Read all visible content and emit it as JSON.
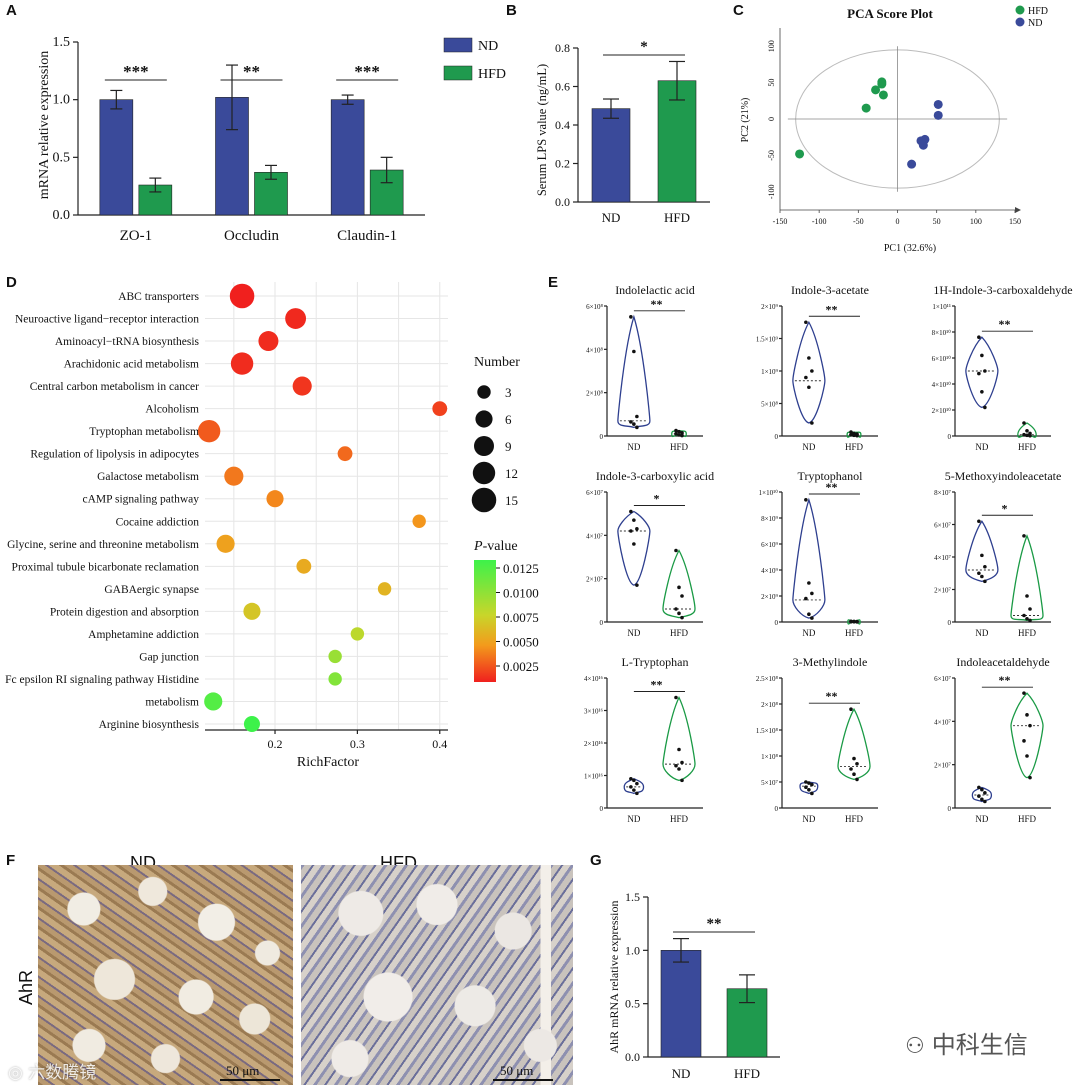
{
  "colors": {
    "nd": "#3a4a9a",
    "hfd": "#1f9a4e",
    "nd_violin": "#2e3f8f",
    "hfd_violin": "#1a9a45"
  },
  "panels": {
    "A": {
      "label": "A",
      "chart_data": {
        "type": "bar",
        "categories": [
          "ZO-1",
          "Occludin",
          "Claudin-1"
        ],
        "series": [
          {
            "name": "ND",
            "values": [
              1.0,
              1.02,
              1.0
            ],
            "errors": [
              0.08,
              0.28,
              0.04
            ]
          },
          {
            "name": "HFD",
            "values": [
              0.26,
              0.37,
              0.39
            ],
            "errors": [
              0.06,
              0.06,
              0.11
            ]
          }
        ],
        "significance": [
          "***",
          "**",
          "***"
        ],
        "ylabel": "mRNA relative expression",
        "ylim": [
          0,
          1.5
        ],
        "yticks": [
          "0.0",
          "0.5",
          "1.0",
          "1.5"
        ],
        "legend": "right"
      }
    },
    "B": {
      "label": "B",
      "chart_data": {
        "type": "bar",
        "categories": [
          "ND",
          "HFD"
        ],
        "values": [
          0.485,
          0.63
        ],
        "errors": [
          0.05,
          0.1
        ],
        "significance": "*",
        "ylabel": "Serum LPS value (ng/mL)",
        "ylim": [
          0,
          0.8
        ],
        "yticks": [
          "0.0",
          "0.2",
          "0.4",
          "0.6",
          "0.8"
        ]
      }
    },
    "C": {
      "label": "C",
      "chart_data": {
        "type": "scatter",
        "title": "PCA Score Plot",
        "xlabel": "PC1 (32.6%)",
        "ylabel": "PC2 (21%)",
        "xlim": [
          -150,
          150
        ],
        "ylim": [
          -125,
          125
        ],
        "xticks": [
          "-150",
          "-100",
          "-50",
          "0",
          "50",
          "100",
          "150"
        ],
        "yticks": [
          "100",
          "50",
          "0",
          "-50",
          "-100"
        ],
        "series": [
          {
            "name": "HFD",
            "points": [
              [
                -125,
                -48
              ],
              [
                -40,
                15
              ],
              [
                -28,
                40
              ],
              [
                -20,
                48
              ],
              [
                -20,
                51
              ],
              [
                -18,
                33
              ]
            ]
          },
          {
            "name": "ND",
            "points": [
              [
                52,
                20
              ],
              [
                52,
                5
              ],
              [
                35,
                -28
              ],
              [
                33,
                -36
              ],
              [
                18,
                -62
              ],
              [
                30,
                -30
              ]
            ]
          }
        ],
        "legend": "top-right"
      }
    },
    "D": {
      "label": "D",
      "chart_data": {
        "type": "bubble",
        "xlabel": "RichFactor",
        "xlim": [
          0.115,
          0.41
        ],
        "xticks": [
          "0.2",
          "0.3",
          "0.4"
        ],
        "pathways": [
          {
            "name": "ABC transporters",
            "rich": 0.16,
            "number": 15,
            "p": 0.0001
          },
          {
            "name": "Neuroactive ligand−receptor interaction",
            "rich": 0.225,
            "number": 10,
            "p": 0.0004
          },
          {
            "name": "Aminoacyl−tRNA biosynthesis",
            "rich": 0.192,
            "number": 9,
            "p": 0.0005
          },
          {
            "name": "Arachidonic acid metabolism",
            "rich": 0.16,
            "number": 12,
            "p": 0.0005
          },
          {
            "name": "Central carbon metabolism in cancer",
            "rich": 0.233,
            "number": 8,
            "p": 0.0008
          },
          {
            "name": "Alcoholism",
            "rich": 0.4,
            "number": 4,
            "p": 0.0012
          },
          {
            "name": "Tryptophan metabolism",
            "rich": 0.12,
            "number": 12,
            "p": 0.002
          },
          {
            "name": "Regulation of lipolysis in adipocytes",
            "rich": 0.285,
            "number": 4,
            "p": 0.0025
          },
          {
            "name": "Galactose metabolism",
            "rich": 0.15,
            "number": 8,
            "p": 0.003
          },
          {
            "name": "cAMP signaling pathway",
            "rich": 0.2,
            "number": 6,
            "p": 0.0035
          },
          {
            "name": "Cocaine addiction",
            "rich": 0.375,
            "number": 3,
            "p": 0.004
          },
          {
            "name": "Glycine, serine and threonine metabolism",
            "rich": 0.14,
            "number": 7,
            "p": 0.0045
          },
          {
            "name": "Proximal tubule bicarbonate reclamation",
            "rich": 0.235,
            "number": 4,
            "p": 0.005
          },
          {
            "name": "GABAergic synapse",
            "rich": 0.333,
            "number": 3,
            "p": 0.0055
          },
          {
            "name": "Protein digestion and absorption",
            "rich": 0.172,
            "number": 6,
            "p": 0.0065
          },
          {
            "name": "Amphetamine addiction",
            "rich": 0.3,
            "number": 3,
            "p": 0.008
          },
          {
            "name": "Gap junction",
            "rich": 0.273,
            "number": 3,
            "p": 0.0095
          },
          {
            "name": "Fc epsilon RI signaling pathway Histidine",
            "rich": 0.273,
            "number": 3,
            "p": 0.0105
          },
          {
            "name": "metabolism",
            "rich": 0.125,
            "number": 7,
            "p": 0.0125
          },
          {
            "name": "Arginine biosynthesis",
            "rich": 0.172,
            "number": 5,
            "p": 0.0135
          }
        ],
        "size_legend": {
          "title": "Number",
          "values": [
            "3",
            "6",
            "9",
            "12",
            "15"
          ]
        },
        "color_legend": {
          "title_p": "P",
          "title_rest": "-value",
          "values": [
            "0.0125",
            "0.0100",
            "0.0075",
            "0.0050",
            "0.0025"
          ]
        }
      }
    },
    "E": {
      "label": "E",
      "chart_data": [
        {
          "type": "violin",
          "title": "Indolelactic acid",
          "categories": [
            "ND",
            "HFD"
          ],
          "ytick_labels": [
            "0",
            "2×10⁸",
            "4×10⁸",
            "6×10⁸"
          ],
          "ylim": [
            0,
            6
          ],
          "sig": "**",
          "nd": [
            5.5,
            3.9,
            0.9,
            0.65,
            0.55,
            0.4
          ],
          "nd_median": 0.7,
          "hfd": [
            0.25,
            0.2,
            0.15,
            0.1,
            0.05,
            0.02
          ],
          "hfd_median": 0.1
        },
        {
          "type": "violin",
          "title": "Indole-3-acetate",
          "categories": [
            "ND",
            "HFD"
          ],
          "ytick_labels": [
            "0",
            "5×10⁸",
            "1×10⁹",
            "1.5×10⁹",
            "2×10⁹"
          ],
          "ylim": [
            0,
            2
          ],
          "sig": "**",
          "nd": [
            1.75,
            1.2,
            1.0,
            0.9,
            0.75,
            0.2
          ],
          "nd_median": 0.85,
          "hfd": [
            0.06,
            0.04,
            0.03,
            0.02,
            0.01,
            0.005
          ],
          "hfd_median": 0.02
        },
        {
          "type": "violin",
          "title": "1H-Indole-3-carboxaldehyde",
          "categories": [
            "ND",
            "HFD"
          ],
          "ytick_labels": [
            "0",
            "2×10¹⁰",
            "4×10¹⁰",
            "6×10¹⁰",
            "8×10¹⁰",
            "1×10¹¹"
          ],
          "ylim": [
            0,
            10
          ],
          "sig": "**",
          "nd": [
            7.6,
            6.2,
            5.0,
            4.8,
            3.4,
            2.2
          ],
          "nd_median": 5.0,
          "hfd": [
            1.0,
            0.4,
            0.2,
            0.1,
            0.05,
            0.02
          ],
          "hfd_median": 0.1
        },
        {
          "type": "violin",
          "title": "Indole-3-carboxylic acid",
          "categories": [
            "ND",
            "HFD"
          ],
          "ytick_labels": [
            "0",
            "2×10⁷",
            "4×10⁷",
            "6×10⁷"
          ],
          "ylim": [
            0,
            6
          ],
          "sig": "*",
          "nd": [
            5.1,
            4.7,
            4.3,
            4.2,
            3.6,
            1.7
          ],
          "nd_median": 4.2,
          "hfd": [
            3.3,
            1.6,
            1.2,
            0.6,
            0.4,
            0.2
          ],
          "hfd_median": 0.6
        },
        {
          "type": "violin",
          "title": "Tryptophanol",
          "categories": [
            "ND",
            "HFD"
          ],
          "ytick_labels": [
            "0",
            "2×10⁹",
            "4×10⁹",
            "6×10⁹",
            "8×10⁹",
            "1×10¹⁰"
          ],
          "ylim": [
            0,
            10
          ],
          "sig": "**",
          "nd": [
            9.4,
            3.0,
            2.2,
            1.8,
            0.6,
            0.3
          ],
          "nd_median": 1.7,
          "hfd": [
            0.05,
            0.04,
            0.03,
            0.02,
            0.02,
            0.01
          ],
          "hfd_median": 0.02
        },
        {
          "type": "violin",
          "title": "5-Methoxyindoleacetate",
          "categories": [
            "ND",
            "HFD"
          ],
          "ytick_labels": [
            "0",
            "2×10⁷",
            "4×10⁷",
            "6×10⁷",
            "8×10⁷"
          ],
          "ylim": [
            0,
            8
          ],
          "sig": "*",
          "nd": [
            6.2,
            4.1,
            3.4,
            3.0,
            2.8,
            2.5
          ],
          "nd_median": 3.2,
          "hfd": [
            5.3,
            1.6,
            0.8,
            0.4,
            0.2,
            0.1
          ],
          "hfd_median": 0.4
        },
        {
          "type": "violin",
          "title": "L-Tryptophan",
          "categories": [
            "ND",
            "HFD"
          ],
          "ytick_labels": [
            "0",
            "1×10¹⁶",
            "2×10¹⁶",
            "3×10¹⁶",
            "4×10¹⁶"
          ],
          "ylim": [
            0,
            4
          ],
          "sig": "**",
          "nd": [
            0.9,
            0.85,
            0.75,
            0.65,
            0.55,
            0.45
          ],
          "nd_median": 0.65,
          "hfd": [
            3.4,
            1.8,
            1.4,
            1.3,
            1.2,
            0.85
          ],
          "hfd_median": 1.35
        },
        {
          "type": "violin",
          "title": "3-Methylindole",
          "categories": [
            "ND",
            "HFD"
          ],
          "ytick_labels": [
            "0",
            "5×10⁷",
            "1×10⁸",
            "1.5×10⁸",
            "2×10⁸",
            "2.5×10⁸"
          ],
          "ylim": [
            0,
            2.5
          ],
          "sig": "**",
          "nd": [
            0.5,
            0.48,
            0.45,
            0.4,
            0.35,
            0.28
          ],
          "nd_median": 0.42,
          "hfd": [
            1.9,
            0.95,
            0.85,
            0.75,
            0.65,
            0.55
          ],
          "hfd_median": 0.8
        },
        {
          "type": "violin",
          "title": "Indoleacetaldehyde",
          "categories": [
            "ND",
            "HFD"
          ],
          "ytick_labels": [
            "0",
            "2×10⁷",
            "4×10⁷",
            "6×10⁷"
          ],
          "ylim": [
            0,
            6
          ],
          "sig": "**",
          "nd": [
            0.95,
            0.85,
            0.7,
            0.55,
            0.4,
            0.3
          ],
          "nd_median": 0.6,
          "hfd": [
            5.3,
            4.3,
            3.8,
            3.1,
            2.4,
            1.4
          ],
          "hfd_median": 3.8
        }
      ]
    },
    "F": {
      "label": "F",
      "col_nd": "ND",
      "col_hfd": "HFD",
      "row": "AhR",
      "scale_nd": "50 μm",
      "scale_hfd": "50 μm"
    },
    "G": {
      "label": "G",
      "chart_data": {
        "type": "bar",
        "categories": [
          "ND",
          "HFD"
        ],
        "values": [
          1.0,
          0.64
        ],
        "errors": [
          0.11,
          0.13
        ],
        "significance": "**",
        "ylabel": "AhR mRNA relative expression",
        "ylim": [
          0,
          1.5
        ],
        "yticks": [
          "0.0",
          "0.5",
          "1.0",
          "1.5"
        ]
      }
    }
  },
  "watermark": {
    "left": "六数腾镜",
    "right": "中科生信"
  }
}
